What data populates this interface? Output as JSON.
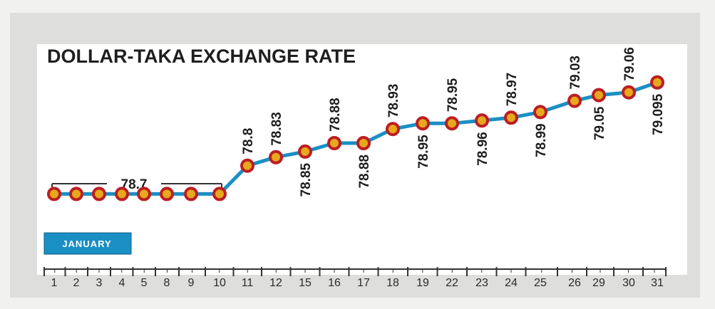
{
  "chart_data": {
    "type": "line",
    "title": "DOLLAR-TAKA EXCHANGE RATE",
    "period_label": "JANUARY",
    "group_label": "78.7",
    "categories": [
      "1",
      "2",
      "3",
      "4",
      "5",
      "8",
      "9",
      "10",
      "11",
      "12",
      "15",
      "16",
      "17",
      "18",
      "19",
      "22",
      "23",
      "24",
      "25",
      "26",
      "29",
      "30",
      "31"
    ],
    "values": [
      78.7,
      78.7,
      78.7,
      78.7,
      78.7,
      78.7,
      78.7,
      78.7,
      78.8,
      78.83,
      78.85,
      78.88,
      78.88,
      78.93,
      78.95,
      78.95,
      78.96,
      78.97,
      78.99,
      79.03,
      79.05,
      79.06,
      79.095
    ],
    "data_labels": [
      "",
      "",
      "",
      "",
      "",
      "",
      "",
      "",
      "78.8",
      "78.83",
      "78.85",
      "78.88",
      "78.88",
      "78.93",
      "78.95",
      "78.95",
      "78.96",
      "78.97",
      "78.99",
      "79.03",
      "79.05",
      "79.06",
      "79.095"
    ],
    "ylim": [
      78.6,
      79.15
    ],
    "colors": {
      "line": "#1a8fc4",
      "marker_fill": "#e7a81c",
      "marker_ring": "#bb1e23",
      "badge": "#1a8fc4",
      "axis": "#333333"
    }
  }
}
